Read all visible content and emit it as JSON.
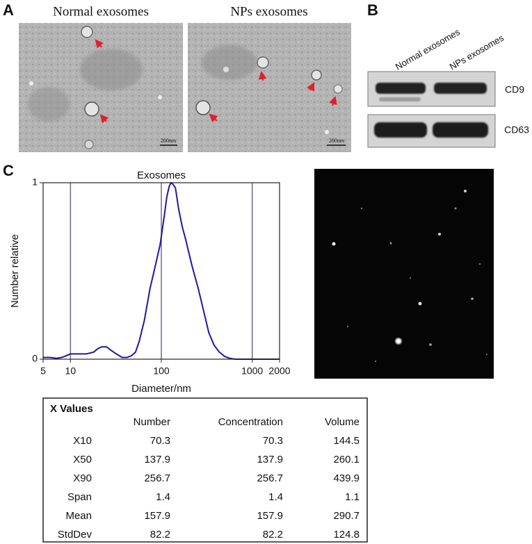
{
  "panels": {
    "a": "A",
    "b": "B",
    "c": "C"
  },
  "tem": {
    "images": [
      {
        "label": "Normal exosomes",
        "scale_bar": "200nm"
      },
      {
        "label": "NPs exosomes",
        "scale_bar": "200nm"
      }
    ]
  },
  "blot": {
    "lanes": [
      "Normal exosomes",
      "NPs exosomes"
    ],
    "bands": [
      "CD9",
      "CD63"
    ]
  },
  "chart_data": {
    "type": "line",
    "title": "Exosomes",
    "x_label": "Diameter/nm",
    "y_label": "Number relative",
    "xscale": "log",
    "xlim": [
      5,
      2000
    ],
    "xticks": [
      5,
      10,
      100,
      1000,
      2000
    ],
    "ylim": [
      0,
      1
    ],
    "yticks": [
      0,
      1
    ],
    "grid": true,
    "series": [
      {
        "name": "Exosomes",
        "color": "#1a1aa0",
        "x": [
          5,
          6,
          7,
          8,
          9,
          10,
          12,
          15,
          18,
          20,
          22,
          25,
          28,
          32,
          37,
          42,
          47,
          52,
          57,
          65,
          75,
          85,
          97,
          107,
          115,
          122,
          128,
          135,
          143,
          155,
          170,
          185,
          197,
          220,
          255,
          290,
          333,
          380,
          435,
          500,
          565,
          650,
          745,
          1000,
          1500,
          2000
        ],
        "values": [
          0.01,
          0.01,
          0.005,
          0.01,
          0.02,
          0.03,
          0.03,
          0.03,
          0.04,
          0.06,
          0.07,
          0.07,
          0.05,
          0.03,
          0.01,
          0.01,
          0.02,
          0.04,
          0.1,
          0.22,
          0.4,
          0.52,
          0.65,
          0.8,
          0.92,
          0.98,
          1.0,
          0.99,
          0.97,
          0.85,
          0.75,
          0.68,
          0.62,
          0.52,
          0.4,
          0.28,
          0.15,
          0.08,
          0.04,
          0.015,
          0.005,
          0.0,
          0.0,
          0.0,
          0.0,
          0.0
        ]
      }
    ]
  },
  "table": {
    "title": "X Values",
    "columns": [
      "Number",
      "Concentration",
      "Volume"
    ],
    "rows": [
      [
        "X10",
        70.3,
        70.3,
        144.5
      ],
      [
        "X50",
        137.9,
        137.9,
        260.1
      ],
      [
        "X90",
        256.7,
        256.7,
        439.9
      ],
      [
        "Span",
        1.4,
        1.4,
        1.1
      ],
      [
        "Mean",
        157.9,
        157.9,
        290.7
      ],
      [
        "StdDev",
        82.2,
        82.2,
        124.8
      ]
    ]
  }
}
